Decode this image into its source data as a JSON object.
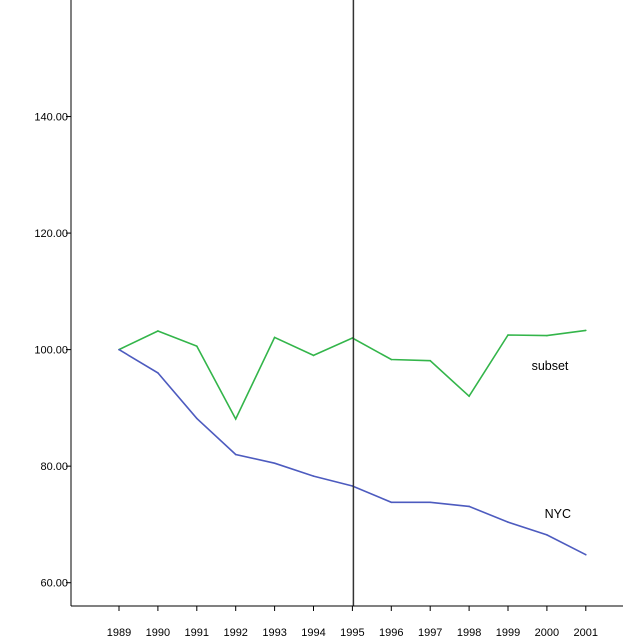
{
  "chart_data": {
    "type": "line",
    "title": "",
    "xlabel": "",
    "ylabel": "",
    "x": [
      "1989",
      "1990",
      "1991",
      "1992",
      "1993",
      "1994",
      "1995",
      "1996",
      "1997",
      "1998",
      "1999",
      "2000",
      "2001"
    ],
    "ylim": [
      56,
      160
    ],
    "yticks": [
      "60.00",
      "80.00",
      "100.00",
      "120.00",
      "140.00"
    ],
    "reference_line_x": "1995",
    "grid": false,
    "series": [
      {
        "name": "subset",
        "color": "#33b54a",
        "values": [
          100.0,
          103.2,
          100.6,
          88.1,
          102.1,
          99.0,
          102.0,
          98.3,
          98.1,
          92.0,
          102.5,
          102.4,
          103.3
        ]
      },
      {
        "name": "NYC",
        "color": "#4d5bbf",
        "values": [
          100.0,
          96.0,
          88.2,
          82.0,
          80.5,
          78.3,
          76.6,
          73.8,
          73.8,
          73.1,
          70.4,
          68.2,
          64.8
        ]
      }
    ]
  }
}
